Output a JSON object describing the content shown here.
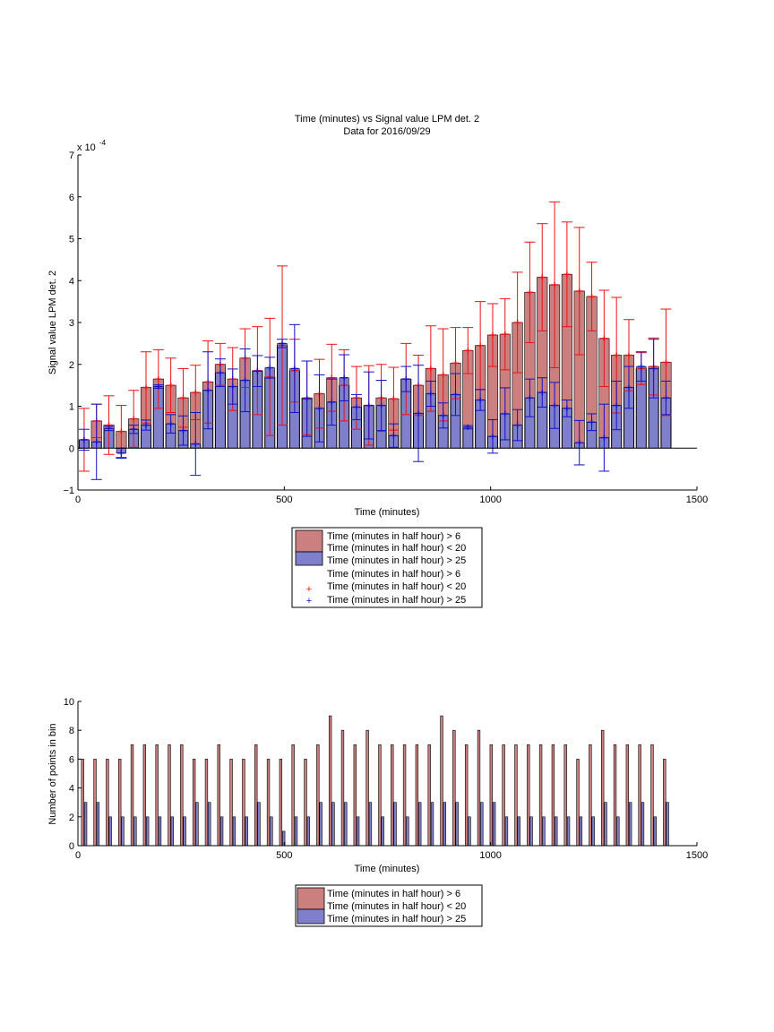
{
  "colors": {
    "red_face": "#cc7f7f",
    "blue_face": "#7f7fcc",
    "red_err": "#ee1111",
    "blue_err": "#1111cc",
    "edge": "#000000"
  },
  "chart_data": [
    {
      "type": "bar",
      "title": "Time (minutes) vs Signal value LPM det. 2",
      "subtitle": "Data for 2016/09/29",
      "xlabel": "Time (minutes)",
      "ylabel": "Signal value LPM det. 2",
      "y_exponent_label": "x 10",
      "y_exponent_power": "-4",
      "xlim": [
        0,
        1500
      ],
      "ylim": [
        -1,
        7
      ],
      "xticks": [
        "0",
        "500",
        "1000",
        "1500"
      ],
      "yticks": [
        "−1",
        "0",
        "1",
        "2",
        "3",
        "4",
        "5",
        "6",
        "7"
      ],
      "grid": false,
      "legend_position": "below",
      "legend": [
        "Time (minutes in half hour) > 6",
        "Time (minutes in half hour) < 20",
        "Time (minutes in half hour) > 25",
        "Time (minutes in half hour) > 6",
        "Time (minutes in half hour) < 20",
        "Time (minutes in half hour) > 25"
      ],
      "x": [
        15,
        45,
        75,
        105,
        135,
        165,
        195,
        225,
        255,
        285,
        315,
        345,
        375,
        405,
        435,
        465,
        495,
        525,
        555,
        585,
        615,
        645,
        675,
        705,
        735,
        765,
        795,
        825,
        855,
        885,
        915,
        945,
        975,
        1005,
        1035,
        1065,
        1095,
        1125,
        1155,
        1185,
        1215,
        1245,
        1275,
        1305,
        1335,
        1365,
        1395,
        1425
      ],
      "series": [
        {
          "name": "Time (minutes in half hour) > 6",
          "color": "red",
          "values": [
            0.2,
            0.65,
            0.55,
            0.4,
            0.7,
            1.45,
            1.65,
            1.5,
            1.2,
            1.33,
            1.58,
            2.0,
            1.65,
            2.15,
            1.85,
            1.7,
            2.45,
            1.85,
            1.2,
            1.3,
            1.68,
            1.5,
            1.2,
            1.02,
            1.2,
            1.18,
            1.65,
            1.5,
            1.9,
            1.75,
            2.03,
            2.33,
            2.45,
            2.7,
            2.72,
            3.0,
            3.72,
            4.08,
            3.9,
            4.15,
            3.75,
            3.62,
            2.62,
            2.22,
            2.22,
            1.9,
            1.95,
            2.05
          ],
          "err": [
            0.75,
            0.4,
            0.7,
            0.62,
            0.68,
            0.85,
            0.7,
            0.65,
            0.7,
            0.65,
            0.98,
            0.5,
            0.75,
            0.7,
            1.05,
            1.4,
            1.9,
            0.75,
            0.88,
            0.82,
            0.8,
            0.85,
            0.75,
            0.95,
            0.8,
            0.75,
            0.85,
            0.72,
            1.02,
            1.1,
            0.85,
            0.55,
            1.05,
            0.75,
            0.85,
            1.2,
            1.2,
            1.28,
            1.98,
            1.25,
            1.52,
            0.82,
            1.15,
            1.38,
            0.85,
            0.38,
            0.68,
            1.27
          ]
        },
        {
          "name": "Time (minutes in half hour) > 25",
          "color": "blue",
          "values": [
            0.2,
            0.15,
            0.47,
            -0.12,
            0.45,
            0.55,
            1.47,
            0.58,
            0.42,
            0.1,
            1.38,
            1.8,
            1.47,
            1.62,
            1.84,
            1.92,
            2.5,
            1.9,
            1.18,
            0.95,
            1.1,
            1.68,
            0.98,
            1.02,
            1.02,
            0.3,
            1.65,
            0.83,
            1.3,
            0.78,
            1.28,
            0.5,
            1.15,
            0.28,
            0.82,
            0.55,
            1.2,
            1.33,
            1.02,
            0.95,
            0.13,
            0.62,
            0.25,
            1.02,
            1.45,
            1.95,
            1.9,
            1.2
          ],
          "err": [
            0.25,
            0.9,
            0.05,
            0.12,
            0.1,
            0.12,
            0.04,
            0.22,
            0.35,
            0.75,
            0.92,
            0.33,
            0.42,
            0.75,
            0.37,
            0.25,
            0.1,
            1.05,
            0.9,
            0.8,
            0.55,
            0.55,
            0.3,
            0.8,
            0.6,
            0.28,
            0.3,
            1.15,
            0.3,
            0.3,
            0.5,
            0.04,
            0.25,
            0.4,
            0.62,
            0.37,
            0.45,
            0.35,
            0.55,
            0.2,
            0.53,
            0.2,
            0.8,
            0.58,
            0.5,
            0.35,
            0.7,
            0.4
          ]
        }
      ]
    },
    {
      "type": "bar",
      "xlabel": "Time (minutes)",
      "ylabel": "Number of points in bin",
      "xlim": [
        0,
        1500
      ],
      "ylim": [
        0,
        10
      ],
      "xticks": [
        "0",
        "500",
        "1000",
        "1500"
      ],
      "yticks": [
        "0",
        "2",
        "4",
        "6",
        "8",
        "10"
      ],
      "grid": false,
      "legend_position": "below",
      "legend": [
        "Time (minutes in half hour) > 6",
        "Time (minutes in half hour) < 20",
        "Time (minutes in half hour) > 25"
      ],
      "x": [
        15,
        45,
        75,
        105,
        135,
        165,
        195,
        225,
        255,
        285,
        315,
        345,
        375,
        405,
        435,
        465,
        495,
        525,
        555,
        585,
        615,
        645,
        675,
        705,
        735,
        765,
        795,
        825,
        855,
        885,
        915,
        945,
        975,
        1005,
        1035,
        1065,
        1095,
        1125,
        1155,
        1185,
        1215,
        1245,
        1275,
        1305,
        1335,
        1365,
        1395,
        1425
      ],
      "series": [
        {
          "name": "Time (minutes in half hour) > 6",
          "color": "red",
          "values": [
            6,
            6,
            6,
            6,
            7,
            7,
            7,
            7,
            7,
            6,
            6,
            7,
            6,
            6,
            7,
            6,
            6,
            7,
            6,
            7,
            9,
            8,
            7,
            8,
            7,
            7,
            7,
            7,
            7,
            9,
            8,
            7,
            8,
            7,
            7,
            7,
            7,
            7,
            7,
            7,
            6,
            7,
            8,
            7,
            7,
            7,
            7,
            6
          ]
        },
        {
          "name": "Time (minutes in half hour) > 25",
          "color": "blue",
          "values": [
            3,
            3,
            2,
            2,
            2,
            2,
            2,
            2,
            2,
            3,
            3,
            2,
            2,
            2,
            3,
            2,
            1,
            2,
            2,
            3,
            3,
            3,
            2,
            3,
            2,
            3,
            2,
            3,
            3,
            3,
            3,
            2,
            3,
            3,
            2,
            2,
            2,
            2,
            2,
            2,
            2,
            2,
            3,
            2,
            3,
            3,
            2,
            3
          ]
        }
      ]
    }
  ]
}
